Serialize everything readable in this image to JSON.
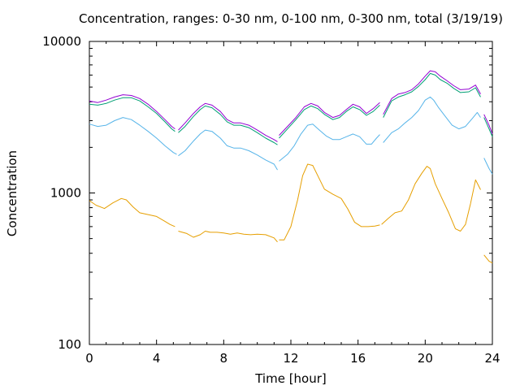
{
  "chart_data": {
    "type": "line",
    "title": "Concentration, ranges: 0-30 nm, 0-100 nm, 0-300 nm, total (3/19/19)",
    "xlabel": "Time [hour]",
    "ylabel": "Concentration",
    "xlim": [
      0,
      24
    ],
    "ylim": [
      100,
      10000
    ],
    "yscale": "log",
    "x_ticks": [
      0,
      4,
      8,
      12,
      16,
      20,
      24
    ],
    "x_tick_labels": [
      "0",
      "4",
      "8",
      "12",
      "16",
      "20",
      "24"
    ],
    "y_ticks": [
      100,
      1000,
      10000
    ],
    "y_tick_labels": [
      "100",
      "1000",
      "10000"
    ],
    "grid": false,
    "legend": "none",
    "series": [
      {
        "color": "#e69f00",
        "segments": [
          [
            [
              0,
              890
            ],
            [
              0.4,
              830
            ],
            [
              0.9,
              790
            ],
            [
              1.4,
              860
            ],
            [
              1.9,
              920
            ],
            [
              2.2,
              900
            ],
            [
              2.6,
              810
            ],
            [
              3.0,
              740
            ],
            [
              3.5,
              720
            ],
            [
              4.0,
              700
            ],
            [
              4.5,
              650
            ],
            [
              4.8,
              620
            ],
            [
              5.1,
              600
            ]
          ],
          [
            [
              5.3,
              560
            ],
            [
              5.8,
              540
            ],
            [
              6.2,
              510
            ],
            [
              6.6,
              530
            ],
            [
              6.9,
              560
            ],
            [
              7.2,
              550
            ],
            [
              7.6,
              550
            ],
            [
              8.0,
              545
            ],
            [
              8.4,
              535
            ],
            [
              8.8,
              545
            ],
            [
              9.2,
              535
            ],
            [
              9.6,
              530
            ],
            [
              10.0,
              535
            ],
            [
              10.5,
              530
            ],
            [
              11.0,
              505
            ],
            [
              11.2,
              475
            ]
          ],
          [
            [
              11.3,
              490
            ],
            [
              11.6,
              490
            ],
            [
              12.0,
              600
            ],
            [
              12.4,
              900
            ],
            [
              12.7,
              1300
            ],
            [
              13.0,
              1550
            ],
            [
              13.3,
              1520
            ],
            [
              13.6,
              1300
            ],
            [
              14.0,
              1060
            ],
            [
              14.5,
              980
            ],
            [
              15.0,
              920
            ],
            [
              15.4,
              780
            ],
            [
              15.8,
              640
            ],
            [
              16.2,
              600
            ],
            [
              16.6,
              600
            ],
            [
              17.0,
              605
            ],
            [
              17.3,
              615
            ]
          ],
          [
            [
              17.4,
              620
            ],
            [
              17.8,
              680
            ],
            [
              18.2,
              740
            ],
            [
              18.6,
              760
            ],
            [
              19.0,
              900
            ],
            [
              19.4,
              1150
            ],
            [
              19.8,
              1350
            ],
            [
              20.1,
              1500
            ],
            [
              20.3,
              1450
            ],
            [
              20.6,
              1150
            ],
            [
              21.0,
              920
            ],
            [
              21.4,
              740
            ],
            [
              21.8,
              580
            ],
            [
              22.1,
              560
            ],
            [
              22.4,
              620
            ],
            [
              22.7,
              850
            ],
            [
              23.0,
              1220
            ],
            [
              23.3,
              1050
            ]
          ],
          [
            [
              23.5,
              390
            ],
            [
              23.8,
              355
            ],
            [
              24.0,
              345
            ]
          ]
        ]
      },
      {
        "color": "#56b4e9",
        "segments": [
          [
            [
              0,
              2850
            ],
            [
              0.5,
              2750
            ],
            [
              1.0,
              2800
            ],
            [
              1.5,
              3000
            ],
            [
              2.0,
              3150
            ],
            [
              2.5,
              3050
            ],
            [
              3.0,
              2800
            ],
            [
              3.5,
              2550
            ],
            [
              4.0,
              2300
            ],
            [
              4.5,
              2050
            ],
            [
              5.0,
              1850
            ],
            [
              5.2,
              1800
            ]
          ],
          [
            [
              5.3,
              1760
            ],
            [
              5.7,
              1900
            ],
            [
              6.2,
              2200
            ],
            [
              6.6,
              2450
            ],
            [
              6.9,
              2600
            ],
            [
              7.3,
              2550
            ],
            [
              7.8,
              2300
            ],
            [
              8.2,
              2050
            ],
            [
              8.6,
              1980
            ],
            [
              9.0,
              1980
            ],
            [
              9.5,
              1900
            ],
            [
              10.0,
              1780
            ],
            [
              10.5,
              1650
            ],
            [
              11.0,
              1550
            ],
            [
              11.2,
              1420
            ]
          ],
          [
            [
              11.3,
              1620
            ],
            [
              11.8,
              1800
            ],
            [
              12.2,
              2050
            ],
            [
              12.6,
              2450
            ],
            [
              13.0,
              2800
            ],
            [
              13.3,
              2850
            ],
            [
              13.7,
              2600
            ],
            [
              14.1,
              2380
            ],
            [
              14.5,
              2250
            ],
            [
              14.9,
              2250
            ],
            [
              15.3,
              2350
            ],
            [
              15.7,
              2450
            ],
            [
              16.1,
              2350
            ],
            [
              16.5,
              2100
            ],
            [
              16.8,
              2100
            ],
            [
              17.1,
              2300
            ],
            [
              17.3,
              2430
            ]
          ],
          [
            [
              17.5,
              2150
            ],
            [
              18.0,
              2500
            ],
            [
              18.4,
              2650
            ],
            [
              18.8,
              2900
            ],
            [
              19.2,
              3150
            ],
            [
              19.6,
              3500
            ],
            [
              20.0,
              4100
            ],
            [
              20.3,
              4300
            ],
            [
              20.5,
              4100
            ],
            [
              20.8,
              3650
            ],
            [
              21.2,
              3200
            ],
            [
              21.6,
              2800
            ],
            [
              22.0,
              2650
            ],
            [
              22.4,
              2750
            ],
            [
              22.8,
              3100
            ],
            [
              23.1,
              3400
            ],
            [
              23.3,
              3150
            ]
          ],
          [
            [
              23.5,
              1700
            ],
            [
              23.8,
              1450
            ],
            [
              24.0,
              1330
            ]
          ]
        ]
      },
      {
        "color": "#009e73",
        "segments": [
          [
            [
              0,
              3850
            ],
            [
              0.5,
              3800
            ],
            [
              1.0,
              3900
            ],
            [
              1.5,
              4100
            ],
            [
              2.0,
              4250
            ],
            [
              2.5,
              4250
            ],
            [
              3.0,
              4050
            ],
            [
              3.5,
              3700
            ],
            [
              4.0,
              3350
            ],
            [
              4.5,
              2950
            ],
            [
              4.9,
              2650
            ],
            [
              5.1,
              2550
            ]
          ],
          [
            [
              5.3,
              2500
            ],
            [
              5.7,
              2750
            ],
            [
              6.2,
              3200
            ],
            [
              6.6,
              3550
            ],
            [
              6.9,
              3750
            ],
            [
              7.3,
              3650
            ],
            [
              7.8,
              3300
            ],
            [
              8.2,
              2950
            ],
            [
              8.6,
              2800
            ],
            [
              9.0,
              2800
            ],
            [
              9.5,
              2700
            ],
            [
              10.0,
              2500
            ],
            [
              10.5,
              2300
            ],
            [
              11.0,
              2150
            ],
            [
              11.2,
              2080
            ]
          ],
          [
            [
              11.3,
              2300
            ],
            [
              11.8,
              2650
            ],
            [
              12.3,
              3050
            ],
            [
              12.8,
              3550
            ],
            [
              13.2,
              3750
            ],
            [
              13.6,
              3600
            ],
            [
              14.0,
              3300
            ],
            [
              14.5,
              3050
            ],
            [
              14.9,
              3150
            ],
            [
              15.3,
              3450
            ],
            [
              15.7,
              3700
            ],
            [
              16.1,
              3550
            ],
            [
              16.5,
              3250
            ],
            [
              16.9,
              3450
            ],
            [
              17.3,
              3800
            ]
          ],
          [
            [
              17.5,
              3150
            ],
            [
              18.0,
              4050
            ],
            [
              18.4,
              4300
            ],
            [
              18.8,
              4450
            ],
            [
              19.2,
              4650
            ],
            [
              19.6,
              5050
            ],
            [
              20.0,
              5600
            ],
            [
              20.3,
              6150
            ],
            [
              20.6,
              6000
            ],
            [
              20.9,
              5600
            ],
            [
              21.3,
              5300
            ],
            [
              21.7,
              4900
            ],
            [
              22.1,
              4600
            ],
            [
              22.6,
              4650
            ],
            [
              23.0,
              4950
            ],
            [
              23.3,
              4300
            ]
          ],
          [
            [
              23.5,
              3150
            ],
            [
              23.8,
              2650
            ],
            [
              24.0,
              2350
            ]
          ]
        ]
      },
      {
        "color": "#9400d3",
        "segments": [
          [
            [
              0,
              4050
            ],
            [
              0.5,
              3950
            ],
            [
              1.0,
              4100
            ],
            [
              1.5,
              4300
            ],
            [
              2.0,
              4450
            ],
            [
              2.5,
              4400
            ],
            [
              3.0,
              4200
            ],
            [
              3.5,
              3850
            ],
            [
              4.0,
              3450
            ],
            [
              4.5,
              3050
            ],
            [
              4.9,
              2750
            ],
            [
              5.1,
              2650
            ]
          ],
          [
            [
              5.3,
              2600
            ],
            [
              5.7,
              2900
            ],
            [
              6.2,
              3350
            ],
            [
              6.6,
              3700
            ],
            [
              6.9,
              3900
            ],
            [
              7.3,
              3800
            ],
            [
              7.8,
              3450
            ],
            [
              8.2,
              3050
            ],
            [
              8.6,
              2900
            ],
            [
              9.0,
              2900
            ],
            [
              9.5,
              2800
            ],
            [
              10.0,
              2600
            ],
            [
              10.5,
              2400
            ],
            [
              11.0,
              2250
            ],
            [
              11.2,
              2180
            ]
          ],
          [
            [
              11.3,
              2400
            ],
            [
              11.8,
              2750
            ],
            [
              12.3,
              3150
            ],
            [
              12.8,
              3700
            ],
            [
              13.2,
              3900
            ],
            [
              13.6,
              3750
            ],
            [
              14.0,
              3400
            ],
            [
              14.5,
              3150
            ],
            [
              14.9,
              3250
            ],
            [
              15.3,
              3550
            ],
            [
              15.7,
              3850
            ],
            [
              16.1,
              3700
            ],
            [
              16.5,
              3350
            ],
            [
              16.9,
              3600
            ],
            [
              17.3,
              3950
            ]
          ],
          [
            [
              17.5,
              3300
            ],
            [
              18.0,
              4200
            ],
            [
              18.4,
              4500
            ],
            [
              18.8,
              4600
            ],
            [
              19.2,
              4800
            ],
            [
              19.6,
              5250
            ],
            [
              20.0,
              5900
            ],
            [
              20.3,
              6400
            ],
            [
              20.6,
              6300
            ],
            [
              20.9,
              5900
            ],
            [
              21.3,
              5500
            ],
            [
              21.7,
              5100
            ],
            [
              22.1,
              4800
            ],
            [
              22.6,
              4850
            ],
            [
              23.0,
              5150
            ],
            [
              23.3,
              4500
            ]
          ],
          [
            [
              23.5,
              3300
            ],
            [
              23.8,
              2800
            ],
            [
              24.0,
              2450
            ]
          ]
        ]
      }
    ]
  }
}
